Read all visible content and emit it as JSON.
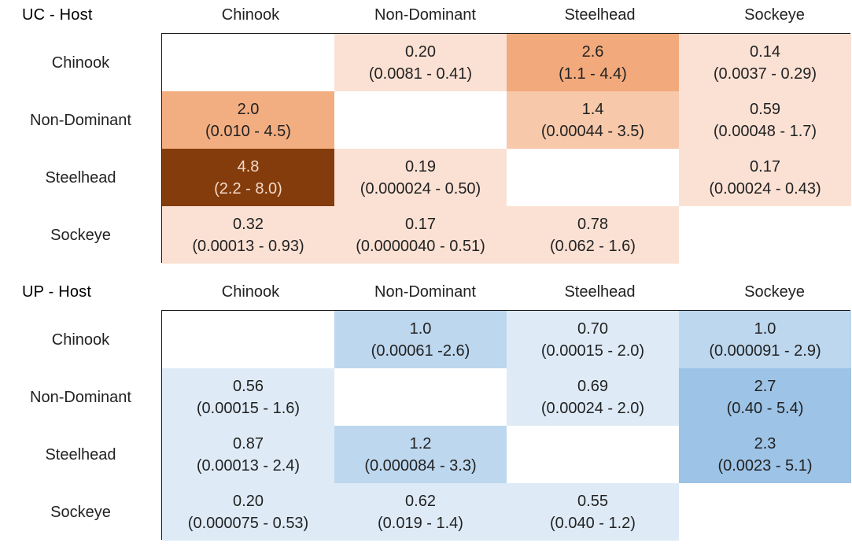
{
  "chart_data": [
    {
      "type": "heatmap",
      "host_label": "UC - Host",
      "columns": [
        "Chinook",
        "Non-Dominant",
        "Steelhead",
        "Sockeye"
      ],
      "rows": [
        "Chinook",
        "Non-Dominant",
        "Steelhead",
        "Sockeye"
      ],
      "cells": [
        [
          {
            "value": "",
            "ci": "",
            "color": "#ffffff"
          },
          {
            "value": "0.20",
            "ci": "(0.0081 - 0.41)",
            "color": "#fbe1d4"
          },
          {
            "value": "2.6",
            "ci": "(1.1 - 4.4)",
            "color": "#f2a97b"
          },
          {
            "value": "0.14",
            "ci": "(0.0037 - 0.29)",
            "color": "#fbe1d4"
          }
        ],
        [
          {
            "value": "2.0",
            "ci": "(0.010 - 4.5)",
            "color": "#f2ad81"
          },
          {
            "value": "",
            "ci": "",
            "color": "#ffffff"
          },
          {
            "value": "1.4",
            "ci": "(0.00044 - 3.5)",
            "color": "#f7c8aa"
          },
          {
            "value": "0.59",
            "ci": "(0.00048 - 1.7)",
            "color": "#fbe1d4"
          }
        ],
        [
          {
            "value": "4.8",
            "ci": "(2.2 - 8.0)",
            "color": "#843c0c"
          },
          {
            "value": "0.19",
            "ci": "(0.000024 - 0.50)",
            "color": "#fbe1d4"
          },
          {
            "value": "",
            "ci": "",
            "color": "#ffffff"
          },
          {
            "value": "0.17",
            "ci": "(0.00024 - 0.43)",
            "color": "#fbe1d4"
          }
        ],
        [
          {
            "value": "0.32",
            "ci": "(0.00013 - 0.93)",
            "color": "#fbe1d4"
          },
          {
            "value": "0.17",
            "ci": "(0.0000040 - 0.51)",
            "color": "#fbe1d4"
          },
          {
            "value": "0.78",
            "ci": "(0.062 - 1.6)",
            "color": "#fbe1d4"
          },
          {
            "value": "",
            "ci": "",
            "color": "#ffffff"
          }
        ]
      ]
    },
    {
      "type": "heatmap",
      "host_label": "UP - Host",
      "columns": [
        "Chinook",
        "Non-Dominant",
        "Steelhead",
        "Sockeye"
      ],
      "rows": [
        "Chinook",
        "Non-Dominant",
        "Steelhead",
        "Sockeye"
      ],
      "cells": [
        [
          {
            "value": "",
            "ci": "",
            "color": "#ffffff"
          },
          {
            "value": "1.0",
            "ci": "(0.00061 -2.6)",
            "color": "#bdd7ee"
          },
          {
            "value": "0.70",
            "ci": "(0.00015 - 2.0)",
            "color": "#deebf7"
          },
          {
            "value": "1.0",
            "ci": "(0.000091 - 2.9)",
            "color": "#bdd7ee"
          }
        ],
        [
          {
            "value": "0.56",
            "ci": "(0.00015 - 1.6)",
            "color": "#deebf7"
          },
          {
            "value": "",
            "ci": "",
            "color": "#ffffff"
          },
          {
            "value": "0.69",
            "ci": "(0.00024 - 2.0)",
            "color": "#deebf7"
          },
          {
            "value": "2.7",
            "ci": "(0.40 - 5.4)",
            "color": "#9dc3e6"
          }
        ],
        [
          {
            "value": "0.87",
            "ci": "(0.00013 - 2.4)",
            "color": "#deebf7"
          },
          {
            "value": "1.2",
            "ci": "(0.000084 - 3.3)",
            "color": "#bdd7ee"
          },
          {
            "value": "",
            "ci": "",
            "color": "#ffffff"
          },
          {
            "value": "2.3",
            "ci": "(0.0023 - 5.1)",
            "color": "#9dc3e6"
          }
        ],
        [
          {
            "value": "0.20",
            "ci": "(0.000075 - 0.53)",
            "color": "#deebf7"
          },
          {
            "value": "0.62",
            "ci": "(0.019 - 1.4)",
            "color": "#deebf7"
          },
          {
            "value": "0.55",
            "ci": "(0.040 - 1.2)",
            "color": "#deebf7"
          },
          {
            "value": "",
            "ci": "",
            "color": "#ffffff"
          }
        ]
      ]
    }
  ]
}
